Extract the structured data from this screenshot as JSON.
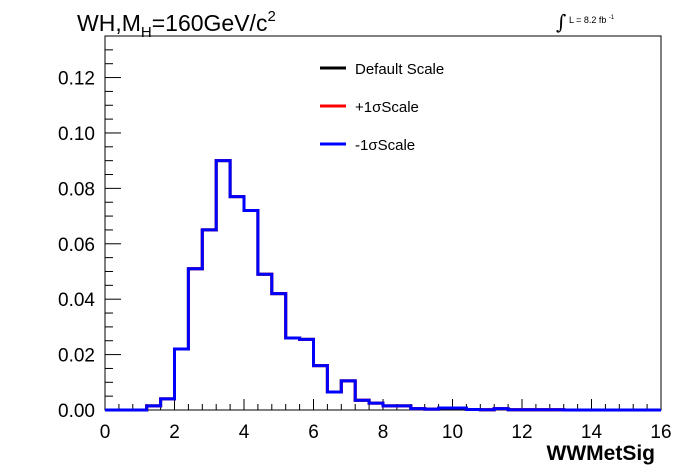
{
  "header": {
    "title_process": "WH,M",
    "title_sub": "H",
    "title_value": "=160GeV/c",
    "title_sup": "2",
    "lumi_integral": "∫",
    "lumi_text": "L = 8.2 fb",
    "lumi_sup": "-1"
  },
  "chart_data": {
    "type": "line",
    "xlabel": "WWMetSig",
    "ylabel": "",
    "xlim": [
      0,
      16
    ],
    "ylim": [
      0,
      0.135
    ],
    "x_ticks": [
      0,
      2,
      4,
      6,
      8,
      10,
      12,
      14,
      16
    ],
    "x_tick_labels": [
      "0",
      "2",
      "4",
      "6",
      "8",
      "10",
      "12",
      "14",
      "16"
    ],
    "y_ticks": [
      0,
      0.02,
      0.04,
      0.06,
      0.08,
      0.1,
      0.12
    ],
    "y_tick_labels": [
      "0.00",
      "0.02",
      "0.04",
      "0.06",
      "0.08",
      "0.10",
      "0.12"
    ],
    "bin_width": 0.4,
    "bin_edges_start": 0,
    "legend": {
      "placement": "top-center"
    },
    "series": [
      {
        "name": "Default Scale",
        "color": "#000000",
        "values": [
          0,
          0,
          0,
          0.0015,
          0.004,
          0.022,
          0.051,
          0.065,
          0.09,
          0.077,
          0.072,
          0.049,
          0.042,
          0.026,
          0.0255,
          0.016,
          0.0065,
          0.0105,
          0.0035,
          0.0025,
          0.0015,
          0.0015,
          0.0005,
          0.0003,
          0.0007,
          0.0007,
          0.0002,
          0.0001,
          0.0005,
          0.0001,
          0.0001,
          0.0001,
          0.0001,
          0,
          0,
          0,
          0,
          0,
          0,
          0
        ]
      },
      {
        "name": "+1σScale",
        "color": "#ff0000",
        "values": [
          0,
          0,
          0,
          0.0015,
          0.004,
          0.022,
          0.051,
          0.065,
          0.09,
          0.077,
          0.072,
          0.049,
          0.042,
          0.026,
          0.0255,
          0.016,
          0.0065,
          0.0105,
          0.0035,
          0.0025,
          0.0015,
          0.0015,
          0.0005,
          0.0003,
          0.0007,
          0.0007,
          0.0002,
          0.0001,
          0.0005,
          0.0001,
          0.0001,
          0.0001,
          0.0001,
          0,
          0,
          0,
          0,
          0,
          0,
          0
        ]
      },
      {
        "name": "-1σScale",
        "color": "#0000ff",
        "values": [
          0,
          0,
          0,
          0.0015,
          0.004,
          0.022,
          0.051,
          0.065,
          0.09,
          0.077,
          0.072,
          0.049,
          0.042,
          0.026,
          0.0255,
          0.016,
          0.0065,
          0.0105,
          0.0035,
          0.0025,
          0.0015,
          0.0015,
          0.0005,
          0.0003,
          0.0007,
          0.0007,
          0.0002,
          0.0001,
          0.0005,
          0.0001,
          0.0001,
          0.0001,
          0.0001,
          0,
          0,
          0,
          0,
          0,
          0,
          0
        ]
      }
    ]
  }
}
